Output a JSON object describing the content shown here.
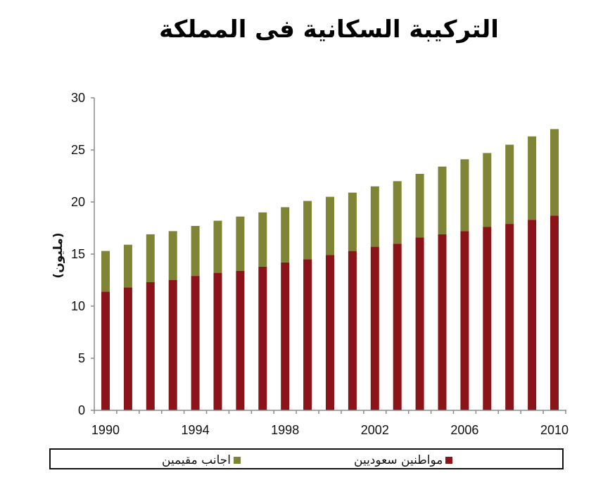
{
  "title": "التركيبة السكانية فى المملكة",
  "legend": {
    "items": [
      {
        "label": "اجانب مقيمين",
        "color": "#7f8535"
      },
      {
        "label": "مواطنين سعوديين",
        "color": "#8b1418"
      }
    ]
  },
  "chart_data": {
    "type": "bar",
    "stacked": true,
    "title": "التركيبة السكانية فى المملكة",
    "xlabel": "",
    "ylabel": "(مليون)",
    "ylim": [
      0,
      30
    ],
    "yticks": [
      0,
      5,
      10,
      15,
      20,
      25,
      30
    ],
    "xtick_labels": [
      "1990",
      "1994",
      "1998",
      "2002",
      "2006",
      "2010"
    ],
    "grid": false,
    "legend_position": "bottom",
    "categories": [
      "1990",
      "1991",
      "1992",
      "1993",
      "1994",
      "1995",
      "1996",
      "1997",
      "1998",
      "1999",
      "2000",
      "2001",
      "2002",
      "2003",
      "2004",
      "2005",
      "2006",
      "2007",
      "2008",
      "2009",
      "2010"
    ],
    "series": [
      {
        "name": "مواطنين سعوديين",
        "color": "#8b1418",
        "values": [
          11.4,
          11.8,
          12.3,
          12.5,
          12.9,
          13.2,
          13.4,
          13.8,
          14.2,
          14.5,
          14.9,
          15.3,
          15.7,
          16.0,
          16.6,
          16.9,
          17.2,
          17.6,
          17.9,
          18.3,
          18.7
        ]
      },
      {
        "name": "اجانب مقيمين",
        "color": "#7f8535",
        "values": [
          3.9,
          4.1,
          4.6,
          4.7,
          4.8,
          5.0,
          5.2,
          5.2,
          5.3,
          5.6,
          5.6,
          5.6,
          5.8,
          6.0,
          6.1,
          6.5,
          6.9,
          7.1,
          7.6,
          8.0,
          8.3
        ]
      }
    ],
    "totals": [
      15.3,
      15.9,
      16.9,
      17.2,
      17.7,
      18.2,
      18.6,
      19.0,
      19.5,
      20.1,
      20.5,
      20.9,
      21.5,
      22.0,
      22.7,
      23.4,
      24.1,
      24.7,
      25.5,
      26.3,
      27.0
    ]
  }
}
